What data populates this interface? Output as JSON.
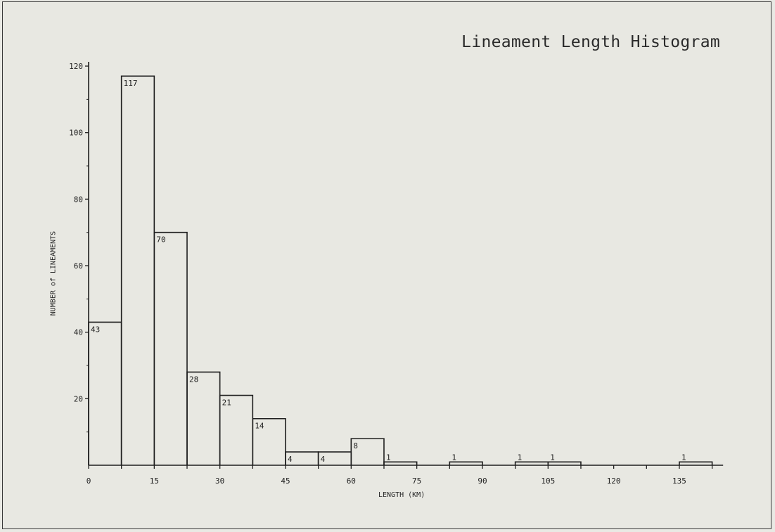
{
  "chart_data": {
    "type": "bar",
    "title": "Lineament Length Histogram",
    "xlabel": "LENGTH (KM)",
    "ylabel": "NUMBER of LINEAMENTS",
    "bin_width": 7.5,
    "bins": [
      {
        "start": 0,
        "end": 7.5,
        "value": 43,
        "label": "43"
      },
      {
        "start": 7.5,
        "end": 15,
        "value": 117,
        "label": "117"
      },
      {
        "start": 15,
        "end": 22.5,
        "value": 70,
        "label": "70"
      },
      {
        "start": 22.5,
        "end": 30,
        "value": 28,
        "label": "28"
      },
      {
        "start": 30,
        "end": 37.5,
        "value": 21,
        "label": "21"
      },
      {
        "start": 37.5,
        "end": 45,
        "value": 14,
        "label": "14"
      },
      {
        "start": 45,
        "end": 52.5,
        "value": 4,
        "label": "4"
      },
      {
        "start": 52.5,
        "end": 60,
        "value": 4,
        "label": "4"
      },
      {
        "start": 60,
        "end": 67.5,
        "value": 8,
        "label": "8"
      },
      {
        "start": 67.5,
        "end": 75,
        "value": 1,
        "label": "1"
      },
      {
        "start": 75,
        "end": 82.5,
        "value": 0,
        "label": ""
      },
      {
        "start": 82.5,
        "end": 90,
        "value": 1,
        "label": "1"
      },
      {
        "start": 90,
        "end": 97.5,
        "value": 0,
        "label": ""
      },
      {
        "start": 97.5,
        "end": 105,
        "value": 1,
        "label": "1"
      },
      {
        "start": 105,
        "end": 112.5,
        "value": 1,
        "label": "1"
      },
      {
        "start": 112.5,
        "end": 120,
        "value": 0,
        "label": ""
      },
      {
        "start": 120,
        "end": 127.5,
        "value": 0,
        "label": ""
      },
      {
        "start": 127.5,
        "end": 135,
        "value": 0,
        "label": ""
      },
      {
        "start": 135,
        "end": 142.5,
        "value": 1,
        "label": "1"
      }
    ],
    "xlim": [
      0,
      145
    ],
    "ylim": [
      0,
      120
    ],
    "xticks": [
      0,
      15,
      30,
      45,
      60,
      75,
      90,
      105,
      120,
      135
    ],
    "xtick_labels": [
      "0",
      "15",
      "30",
      "45",
      "60",
      "75",
      "90",
      "105",
      "120",
      "135"
    ],
    "yticks": [
      20,
      40,
      60,
      80,
      100,
      120
    ],
    "ytick_labels": [
      "20",
      "40",
      "60",
      "80",
      "100",
      "120"
    ],
    "grid": false,
    "legend": "none"
  }
}
